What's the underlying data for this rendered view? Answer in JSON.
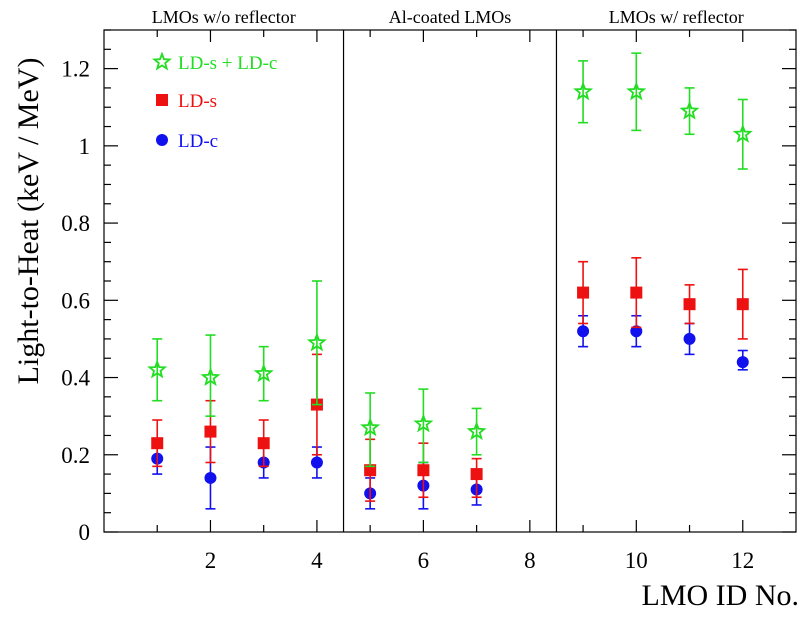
{
  "chart_data": {
    "type": "scatter",
    "xlabel": "LMO ID No.",
    "ylabel": "Light-to-Heat (keV / MeV)",
    "xlim": [
      0,
      13
    ],
    "ylim": [
      0,
      1.3
    ],
    "x_ticks": [
      2,
      4,
      6,
      8,
      10,
      12
    ],
    "y_ticks": [
      0,
      0.2,
      0.4,
      0.6,
      0.8,
      1,
      1.2
    ],
    "grid": false,
    "legend_position": "top-left",
    "panels": [
      {
        "label": "LMOs w/o reflector",
        "x_range": [
          0,
          4.5
        ]
      },
      {
        "label": "Al-coated LMOs",
        "x_range": [
          4.5,
          8.5
        ]
      },
      {
        "label": "LMOs w/ reflector",
        "x_range": [
          8.5,
          13
        ]
      }
    ],
    "series": [
      {
        "name": "LD-s + LD-c",
        "marker": "open-star",
        "color": "#22dd22",
        "points": [
          {
            "x": 1,
            "y": 0.42,
            "lo": 0.34,
            "hi": 0.5
          },
          {
            "x": 2,
            "y": 0.4,
            "lo": 0.3,
            "hi": 0.51
          },
          {
            "x": 3,
            "y": 0.41,
            "lo": 0.34,
            "hi": 0.48
          },
          {
            "x": 4,
            "y": 0.49,
            "lo": 0.33,
            "hi": 0.65
          },
          {
            "x": 5,
            "y": 0.27,
            "lo": 0.17,
            "hi": 0.36
          },
          {
            "x": 6,
            "y": 0.28,
            "lo": 0.18,
            "hi": 0.37
          },
          {
            "x": 7,
            "y": 0.26,
            "lo": 0.2,
            "hi": 0.32
          },
          {
            "x": 9,
            "y": 1.14,
            "lo": 1.06,
            "hi": 1.22
          },
          {
            "x": 10,
            "y": 1.14,
            "lo": 1.04,
            "hi": 1.24
          },
          {
            "x": 11,
            "y": 1.09,
            "lo": 1.03,
            "hi": 1.15
          },
          {
            "x": 12,
            "y": 1.03,
            "lo": 0.94,
            "hi": 1.12
          }
        ]
      },
      {
        "name": "LD-s",
        "marker": "square",
        "color": "#ee1111",
        "points": [
          {
            "x": 1,
            "y": 0.23,
            "lo": 0.17,
            "hi": 0.29
          },
          {
            "x": 2,
            "y": 0.26,
            "lo": 0.18,
            "hi": 0.34
          },
          {
            "x": 3,
            "y": 0.23,
            "lo": 0.17,
            "hi": 0.29
          },
          {
            "x": 4,
            "y": 0.33,
            "lo": 0.2,
            "hi": 0.46
          },
          {
            "x": 5,
            "y": 0.16,
            "lo": 0.08,
            "hi": 0.24
          },
          {
            "x": 6,
            "y": 0.16,
            "lo": 0.09,
            "hi": 0.23
          },
          {
            "x": 7,
            "y": 0.15,
            "lo": 0.09,
            "hi": 0.19
          },
          {
            "x": 9,
            "y": 0.62,
            "lo": 0.54,
            "hi": 0.7
          },
          {
            "x": 10,
            "y": 0.62,
            "lo": 0.53,
            "hi": 0.71
          },
          {
            "x": 11,
            "y": 0.59,
            "lo": 0.54,
            "hi": 0.64
          },
          {
            "x": 12,
            "y": 0.59,
            "lo": 0.5,
            "hi": 0.68
          }
        ]
      },
      {
        "name": "LD-c",
        "marker": "circle",
        "color": "#1111ee",
        "points": [
          {
            "x": 1,
            "y": 0.19,
            "lo": 0.15,
            "hi": 0.23
          },
          {
            "x": 2,
            "y": 0.14,
            "lo": 0.06,
            "hi": 0.22
          },
          {
            "x": 3,
            "y": 0.18,
            "lo": 0.14,
            "hi": 0.22
          },
          {
            "x": 4,
            "y": 0.18,
            "lo": 0.14,
            "hi": 0.22
          },
          {
            "x": 5,
            "y": 0.1,
            "lo": 0.06,
            "hi": 0.14
          },
          {
            "x": 6,
            "y": 0.12,
            "lo": 0.06,
            "hi": 0.18
          },
          {
            "x": 7,
            "y": 0.11,
            "lo": 0.07,
            "hi": 0.15
          },
          {
            "x": 9,
            "y": 0.52,
            "lo": 0.48,
            "hi": 0.56
          },
          {
            "x": 10,
            "y": 0.52,
            "lo": 0.48,
            "hi": 0.56
          },
          {
            "x": 11,
            "y": 0.5,
            "lo": 0.46,
            "hi": 0.54
          },
          {
            "x": 12,
            "y": 0.44,
            "lo": 0.42,
            "hi": 0.47
          }
        ]
      }
    ]
  }
}
